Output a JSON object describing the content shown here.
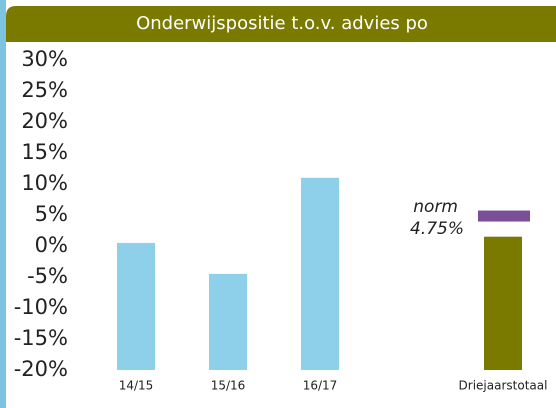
{
  "chart_data": {
    "type": "bar",
    "title": "Onderwijspositie t.o.v. advies po",
    "categories": [
      "14/15",
      "15/16",
      "16/17",
      "Driejaarstotaal"
    ],
    "values": [
      0.5,
      -4.5,
      11,
      1.5
    ],
    "colors": [
      "#8ecfe9",
      "#8ecfe9",
      "#8ecfe9",
      "#7a7a00"
    ],
    "ylim": [
      -20,
      30
    ],
    "yticks": [
      {
        "value": -20,
        "label": "-20%"
      },
      {
        "value": -15,
        "label": "-15%"
      },
      {
        "value": -10,
        "label": "-10%"
      },
      {
        "value": -5,
        "label": "-5%"
      },
      {
        "value": 0,
        "label": "0%"
      },
      {
        "value": 5,
        "label": "5%"
      },
      {
        "value": 10,
        "label": "10%"
      },
      {
        "value": 15,
        "label": "15%"
      },
      {
        "value": 20,
        "label": "20%"
      },
      {
        "value": 25,
        "label": "25%"
      },
      {
        "value": 30,
        "label": "30%"
      }
    ],
    "norm": {
      "text": "norm",
      "value": 4.75,
      "value_label": "4.75%",
      "color": "#7a4f98"
    }
  }
}
